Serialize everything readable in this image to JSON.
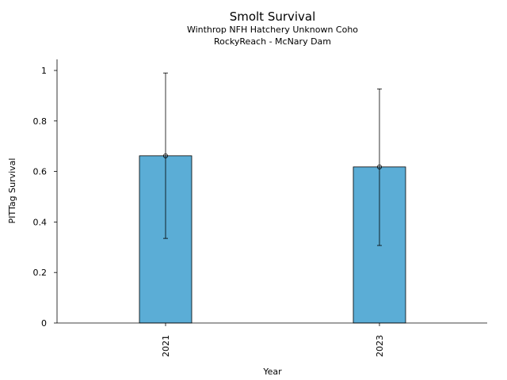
{
  "chart_data": {
    "type": "bar",
    "title": "Smolt Survival",
    "subtitle_lines": [
      "Winthrop NFH Hatchery Unknown Coho",
      "RockyReach - McNary Dam"
    ],
    "xlabel": "Year",
    "ylabel": "PITTag Survival",
    "categories": [
      "2021",
      "2023"
    ],
    "values": [
      0.662,
      0.618
    ],
    "error_low": [
      0.335,
      0.307
    ],
    "error_high": [
      0.99,
      0.927
    ],
    "ylim": [
      0,
      1.04
    ],
    "yticks": [
      0,
      0.2,
      0.4,
      0.6,
      0.8,
      1
    ],
    "ytick_labels": [
      "0",
      "0.2",
      "0.4",
      "0.6",
      "0.8",
      "1"
    ],
    "bar_color": "#5BADD6",
    "grid": false
  }
}
